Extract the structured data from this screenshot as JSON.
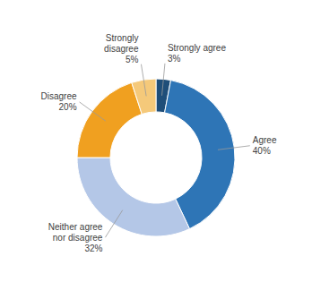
{
  "chart_data": {
    "type": "donut",
    "categories": [
      "Strongly agree",
      "Agree",
      "Neither agree\nnor disagree",
      "Disagree",
      "Strongly\ndisagree"
    ],
    "values": [
      3,
      40,
      32,
      20,
      5
    ],
    "value_labels": [
      "3%",
      "40%",
      "32%",
      "20%",
      "5%"
    ],
    "colors": [
      "#1f4e79",
      "#2e75b6",
      "#b4c7e7",
      "#f0a020",
      "#f5c97a"
    ],
    "data_labels": true
  }
}
